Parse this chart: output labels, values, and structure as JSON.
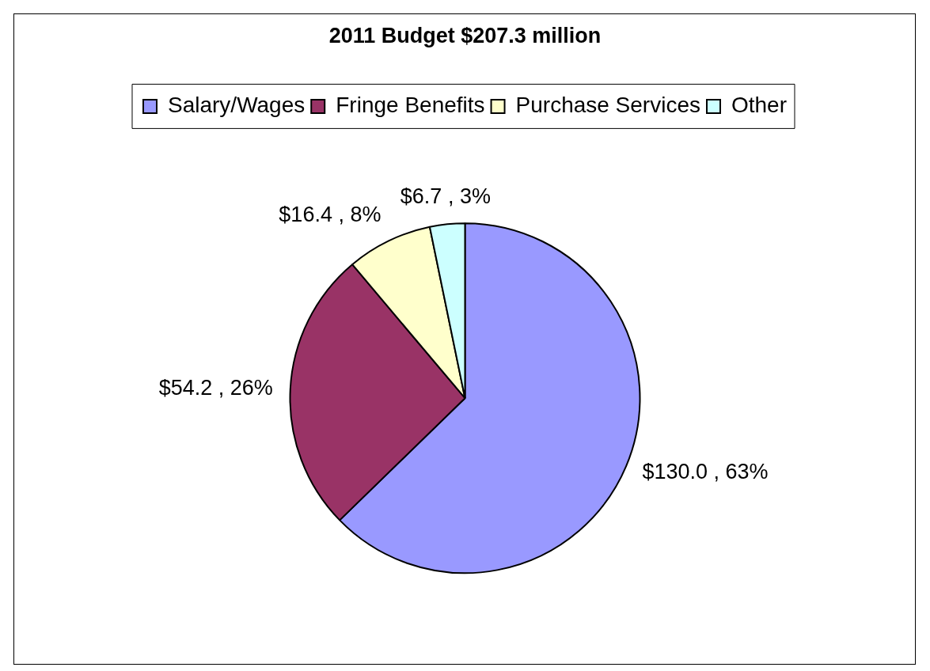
{
  "chart_data": {
    "type": "pie",
    "title": "2011 Budget $207.3 million",
    "categories": [
      "Salary/Wages",
      "Fringe Benefits",
      "Purchase Services",
      "Other"
    ],
    "values": [
      130.0,
      54.2,
      16.4,
      6.7
    ],
    "colors": [
      "#9999ff",
      "#993366",
      "#ffffcc",
      "#ccffff"
    ],
    "value_labels": [
      "$130.0 , 63%",
      "$54.2 , 26%",
      "$16.4 , 8%",
      "$6.7 , 3%"
    ],
    "legend": "top"
  }
}
